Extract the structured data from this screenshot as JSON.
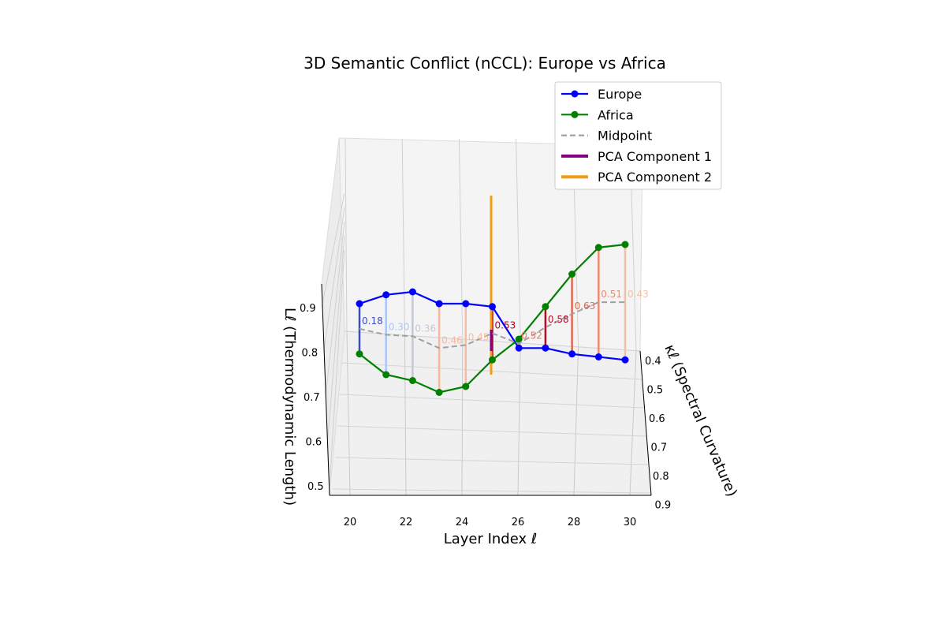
{
  "chart_data": {
    "type": "line",
    "projection": "3d",
    "title": "3D Semantic Conflict (nCCL): Europe vs Africa",
    "xlabel": "Layer Index ℓ",
    "ylabel": "κℓ (Spectral Curvature)",
    "zlabel": "Lℓ (Thermodynamic Length)",
    "legend_position": "top-right",
    "x_ticks": [
      "20",
      "22",
      "24",
      "26",
      "28",
      "30"
    ],
    "y_ticks": [
      "0.4",
      "0.5",
      "0.6",
      "0.7",
      "0.8",
      "0.9"
    ],
    "z_ticks": [
      "0.5",
      "0.6",
      "0.7",
      "0.8",
      "0.9"
    ],
    "grid": true,
    "x": [
      20,
      21,
      22,
      23,
      24,
      25,
      26,
      27,
      28,
      29,
      30
    ],
    "series": [
      {
        "name": "Europe",
        "color": "#0000ff",
        "marker": "circle",
        "style": "solid",
        "values": [
          0.84,
          0.87,
          0.88,
          0.84,
          0.84,
          0.83,
          0.69,
          0.69,
          0.67,
          0.66,
          0.65
        ]
      },
      {
        "name": "Africa",
        "color": "#008000",
        "marker": "circle",
        "style": "solid",
        "values": [
          0.67,
          0.6,
          0.58,
          0.54,
          0.56,
          0.65,
          0.72,
          0.83,
          0.94,
          1.03,
          1.04
        ]
      },
      {
        "name": "Midpoint",
        "color": "#a0a0a0",
        "marker": "none",
        "style": "dashed",
        "values": [
          0.755,
          0.735,
          0.73,
          0.69,
          0.7,
          0.74,
          0.705,
          0.76,
          0.805,
          0.845,
          0.845
        ]
      }
    ],
    "legend_only_series": [
      {
        "name": "PCA Component 1",
        "color": "#800080"
      },
      {
        "name": "PCA Component 2",
        "color": "#f39c12"
      }
    ],
    "conflict_values": [
      "0.18",
      "0.30",
      "0.36",
      "0.46",
      "0.45",
      "0.53",
      "0.52",
      "0.58",
      "0.63",
      "0.51",
      "0.43"
    ],
    "conflict_colors": [
      "#3b4cc0",
      "#a9c6fd",
      "#c5c8d6",
      "#f4b99d",
      "#f5bca2",
      "#b40426",
      "#e67b64",
      "#b70d28",
      "#e16852",
      "#ef8a6e",
      "#f2c0a8"
    ]
  }
}
